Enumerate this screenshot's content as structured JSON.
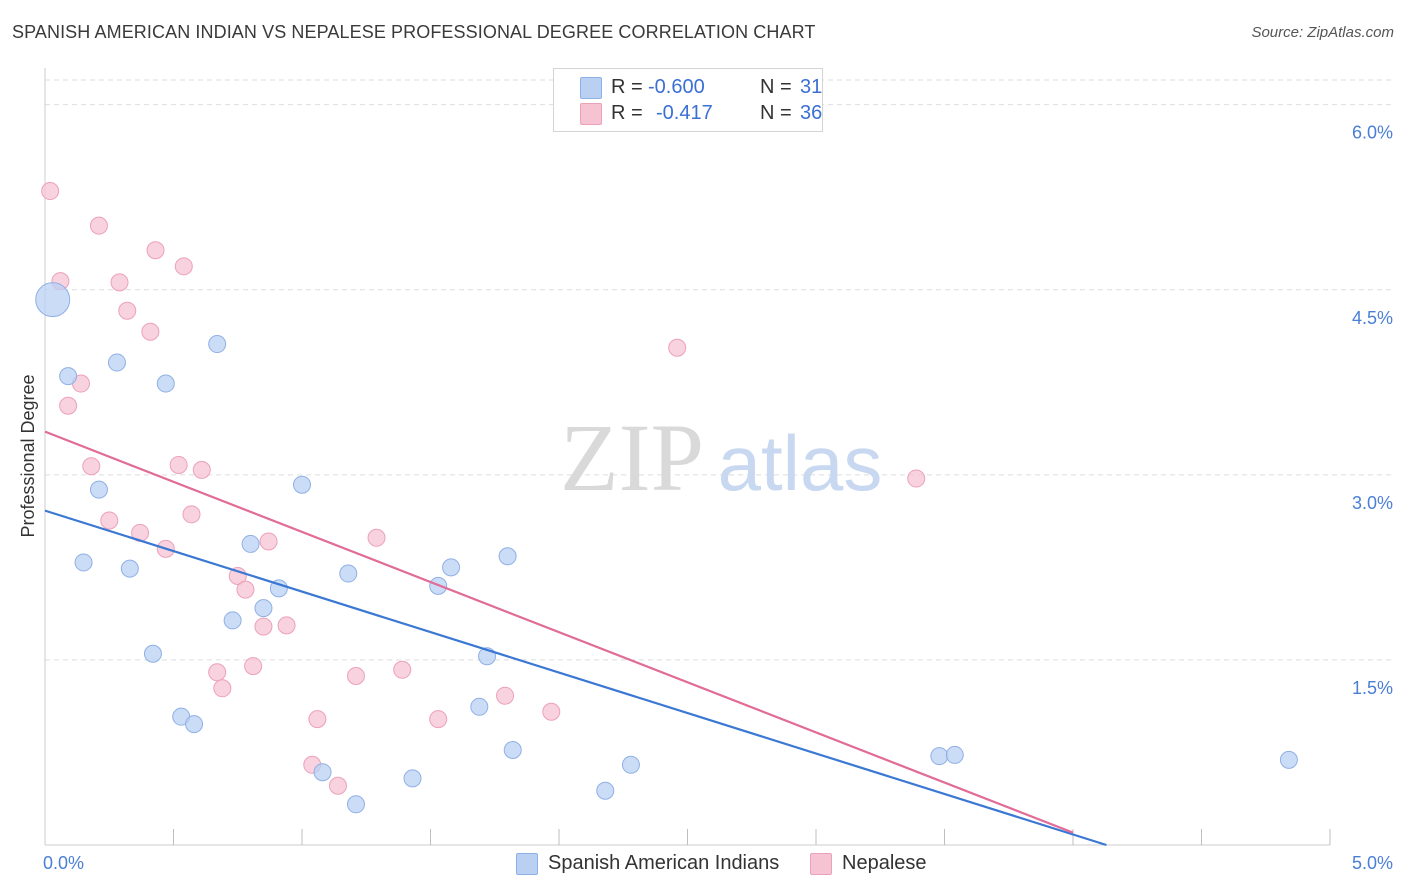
{
  "header": {
    "title": "SPANISH AMERICAN INDIAN VS NEPALESE PROFESSIONAL DEGREE CORRELATION CHART",
    "source": "Source: ZipAtlas.com"
  },
  "legend": {
    "rows": [
      {
        "r_label": "R =",
        "r_value": "-0.600",
        "n_label": "N =",
        "n_value": "31"
      },
      {
        "r_label": "R =",
        "r_value": "-0.417",
        "n_label": "N =",
        "n_value": "36"
      }
    ]
  },
  "watermark": {
    "part1": "ZIP",
    "part2": "atlas"
  },
  "colors": {
    "blue_fill": "#b9d0f3",
    "blue_stroke": "#8fb0e6",
    "blue_line": "#3a78d4",
    "pink_fill": "#f6c3d3",
    "pink_stroke": "#eca1ba",
    "pink_line": "#e06c97",
    "axis_text": "#4a7fd6",
    "grid": "#dedede"
  },
  "chart_data": {
    "type": "scatter",
    "title": "SPANISH AMERICAN INDIAN VS NEPALESE PROFESSIONAL DEGREE CORRELATION CHART",
    "xlabel": "",
    "ylabel": "Professional Degree",
    "xlim": [
      0,
      5.0
    ],
    "ylim": [
      0,
      6.2
    ],
    "x_tick_labels": [
      "0.0%",
      "5.0%"
    ],
    "y_ticks": [
      1.5,
      3.0,
      4.5,
      6.0
    ],
    "y_tick_labels": [
      "1.5%",
      "3.0%",
      "4.5%",
      "6.0%"
    ],
    "grid": true,
    "legend_position": "bottom",
    "series": [
      {
        "name": "Spanish American Indians",
        "color": "blue",
        "r": -0.6,
        "n": 31,
        "trend": {
          "x": [
            0.0,
            4.13
          ],
          "y": [
            2.71,
            0.0
          ]
        },
        "points": [
          {
            "x": 0.03,
            "y": 4.42,
            "big": true
          },
          {
            "x": 0.09,
            "y": 3.8
          },
          {
            "x": 0.28,
            "y": 3.91
          },
          {
            "x": 0.47,
            "y": 3.74
          },
          {
            "x": 0.67,
            "y": 4.06
          },
          {
            "x": 0.21,
            "y": 2.88
          },
          {
            "x": 1.0,
            "y": 2.92
          },
          {
            "x": 0.15,
            "y": 2.29
          },
          {
            "x": 0.33,
            "y": 2.24
          },
          {
            "x": 0.8,
            "y": 2.44
          },
          {
            "x": 0.91,
            "y": 2.08
          },
          {
            "x": 1.18,
            "y": 2.2
          },
          {
            "x": 1.53,
            "y": 2.1
          },
          {
            "x": 1.58,
            "y": 2.25
          },
          {
            "x": 1.8,
            "y": 2.34
          },
          {
            "x": 0.73,
            "y": 1.82
          },
          {
            "x": 0.85,
            "y": 1.92
          },
          {
            "x": 0.42,
            "y": 1.55
          },
          {
            "x": 1.72,
            "y": 1.53
          },
          {
            "x": 0.53,
            "y": 1.04
          },
          {
            "x": 0.58,
            "y": 0.98
          },
          {
            "x": 1.69,
            "y": 1.12
          },
          {
            "x": 1.82,
            "y": 0.77
          },
          {
            "x": 1.08,
            "y": 0.59
          },
          {
            "x": 1.21,
            "y": 0.33
          },
          {
            "x": 1.43,
            "y": 0.54
          },
          {
            "x": 2.18,
            "y": 0.44
          },
          {
            "x": 2.28,
            "y": 0.65
          },
          {
            "x": 3.48,
            "y": 0.72
          },
          {
            "x": 3.54,
            "y": 0.73
          },
          {
            "x": 4.84,
            "y": 0.69
          }
        ]
      },
      {
        "name": "Nepalese",
        "color": "pink",
        "r": -0.417,
        "n": 36,
        "trend": {
          "x": [
            0.0,
            4.0
          ],
          "y": [
            3.35,
            0.1
          ]
        },
        "points": [
          {
            "x": 0.02,
            "y": 5.3
          },
          {
            "x": 0.21,
            "y": 5.02
          },
          {
            "x": 0.43,
            "y": 4.82
          },
          {
            "x": 0.54,
            "y": 4.69
          },
          {
            "x": 0.06,
            "y": 4.57
          },
          {
            "x": 0.29,
            "y": 4.56
          },
          {
            "x": 0.32,
            "y": 4.33
          },
          {
            "x": 0.41,
            "y": 4.16
          },
          {
            "x": 2.46,
            "y": 4.03
          },
          {
            "x": 0.14,
            "y": 3.74
          },
          {
            "x": 0.09,
            "y": 3.56
          },
          {
            "x": 0.18,
            "y": 3.07
          },
          {
            "x": 0.52,
            "y": 3.08
          },
          {
            "x": 0.61,
            "y": 3.04
          },
          {
            "x": 3.39,
            "y": 2.97
          },
          {
            "x": 0.25,
            "y": 2.63
          },
          {
            "x": 0.57,
            "y": 2.68
          },
          {
            "x": 0.37,
            "y": 2.53
          },
          {
            "x": 0.47,
            "y": 2.4
          },
          {
            "x": 0.87,
            "y": 2.46
          },
          {
            "x": 1.29,
            "y": 2.49
          },
          {
            "x": 0.75,
            "y": 2.18
          },
          {
            "x": 0.78,
            "y": 2.07
          },
          {
            "x": 0.85,
            "y": 1.77
          },
          {
            "x": 0.94,
            "y": 1.78
          },
          {
            "x": 0.81,
            "y": 1.45
          },
          {
            "x": 0.67,
            "y": 1.4
          },
          {
            "x": 0.69,
            "y": 1.27
          },
          {
            "x": 1.21,
            "y": 1.37
          },
          {
            "x": 1.39,
            "y": 1.42
          },
          {
            "x": 1.79,
            "y": 1.21
          },
          {
            "x": 1.06,
            "y": 1.02
          },
          {
            "x": 1.53,
            "y": 1.02
          },
          {
            "x": 1.97,
            "y": 1.08
          },
          {
            "x": 1.04,
            "y": 0.65
          },
          {
            "x": 1.14,
            "y": 0.48
          }
        ]
      }
    ]
  }
}
